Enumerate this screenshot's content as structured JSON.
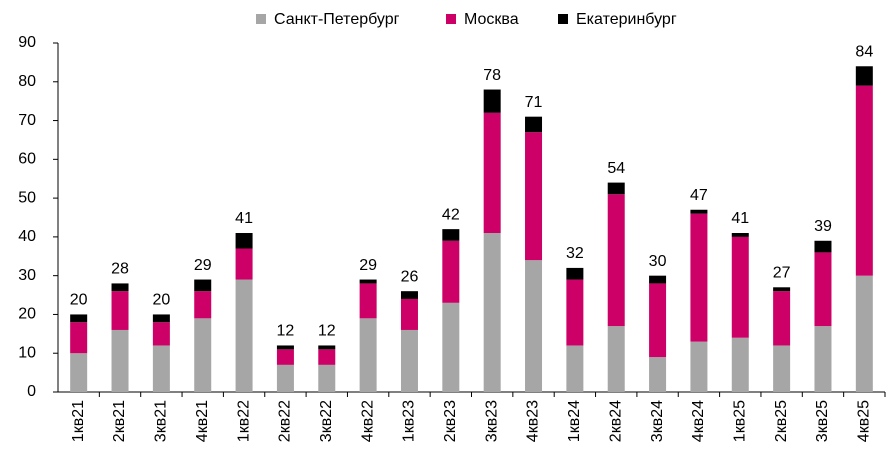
{
  "chart_data": {
    "type": "stacked_bar",
    "categories": [
      "1кв21",
      "2кв21",
      "3кв21",
      "4кв21",
      "1кв22",
      "2кв22",
      "3кв22",
      "4кв22",
      "1кв23",
      "2кв23",
      "3кв23",
      "4кв23",
      "1кв24",
      "2кв24",
      "3кв24",
      "4кв24",
      "1кв25",
      "2кв25",
      "3кв25",
      "4кв25"
    ],
    "series": [
      {
        "name": "Санкт-Петербург",
        "color": "#a6a6a6",
        "values": [
          10,
          16,
          12,
          19,
          29,
          7,
          7,
          19,
          16,
          23,
          41,
          34,
          12,
          17,
          9,
          13,
          14,
          12,
          17,
          30
        ]
      },
      {
        "name": "Москва",
        "color": "#cc0066",
        "values": [
          8,
          10,
          6,
          7,
          8,
          4,
          4,
          9,
          8,
          16,
          31,
          33,
          17,
          34,
          19,
          33,
          26,
          14,
          19,
          49
        ]
      },
      {
        "name": "Екатеринбург",
        "color": "#000000",
        "values": [
          2,
          2,
          2,
          3,
          4,
          1,
          1,
          1,
          2,
          3,
          6,
          4,
          3,
          3,
          2,
          1,
          1,
          1,
          3,
          5
        ]
      }
    ],
    "totals": [
      20,
      28,
      20,
      29,
      41,
      12,
      12,
      29,
      26,
      42,
      78,
      71,
      32,
      54,
      30,
      47,
      41,
      27,
      39,
      84
    ],
    "ylim": [
      0,
      90
    ],
    "yticks": [
      0,
      10,
      20,
      30,
      40,
      50,
      60,
      70,
      80,
      90
    ],
    "legend": "top"
  }
}
